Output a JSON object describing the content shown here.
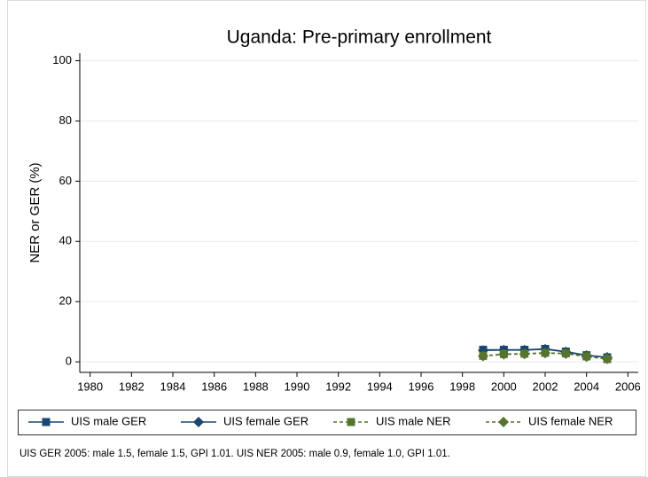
{
  "chart_data": {
    "type": "line",
    "title": "Uganda: Pre-primary enrollment",
    "y_label": "NER or GER (%)",
    "note": "UIS GER 2005: male 1.5, female 1.5, GPI 1.01. UIS NER 2005: male 0.9, female 1.0, GPI 1.01.",
    "x": [
      1999,
      2000,
      2001,
      2002,
      2003,
      2004,
      2005
    ],
    "series": [
      {
        "name": "UIS male GER",
        "color": "#1a476f",
        "marker": "square",
        "dash": false,
        "values": [
          4.0,
          4.0,
          4.0,
          4.3,
          3.4,
          2.2,
          1.5
        ]
      },
      {
        "name": "UIS female GER",
        "color": "#1a476f",
        "marker": "diamond",
        "dash": false,
        "values": [
          3.8,
          3.9,
          3.9,
          4.2,
          3.3,
          2.1,
          1.5
        ]
      },
      {
        "name": "UIS male NER",
        "color": "#55752f",
        "marker": "square",
        "dash": true,
        "values": [
          2.0,
          2.6,
          2.7,
          3.0,
          2.8,
          1.8,
          0.9
        ]
      },
      {
        "name": "UIS female NER",
        "color": "#55752f",
        "marker": "diamond",
        "dash": true,
        "values": [
          1.9,
          2.5,
          2.6,
          2.9,
          2.7,
          1.7,
          1.0
        ]
      }
    ],
    "xlim": [
      1979.5,
      2006.5
    ],
    "xticks": [
      1980,
      1982,
      1984,
      1986,
      1988,
      1990,
      1992,
      1994,
      1996,
      1998,
      2000,
      2002,
      2004,
      2006
    ],
    "ylim": [
      -3.5,
      102.5
    ],
    "yticks": [
      0,
      20,
      40,
      60,
      80,
      100
    ],
    "grid": true
  }
}
